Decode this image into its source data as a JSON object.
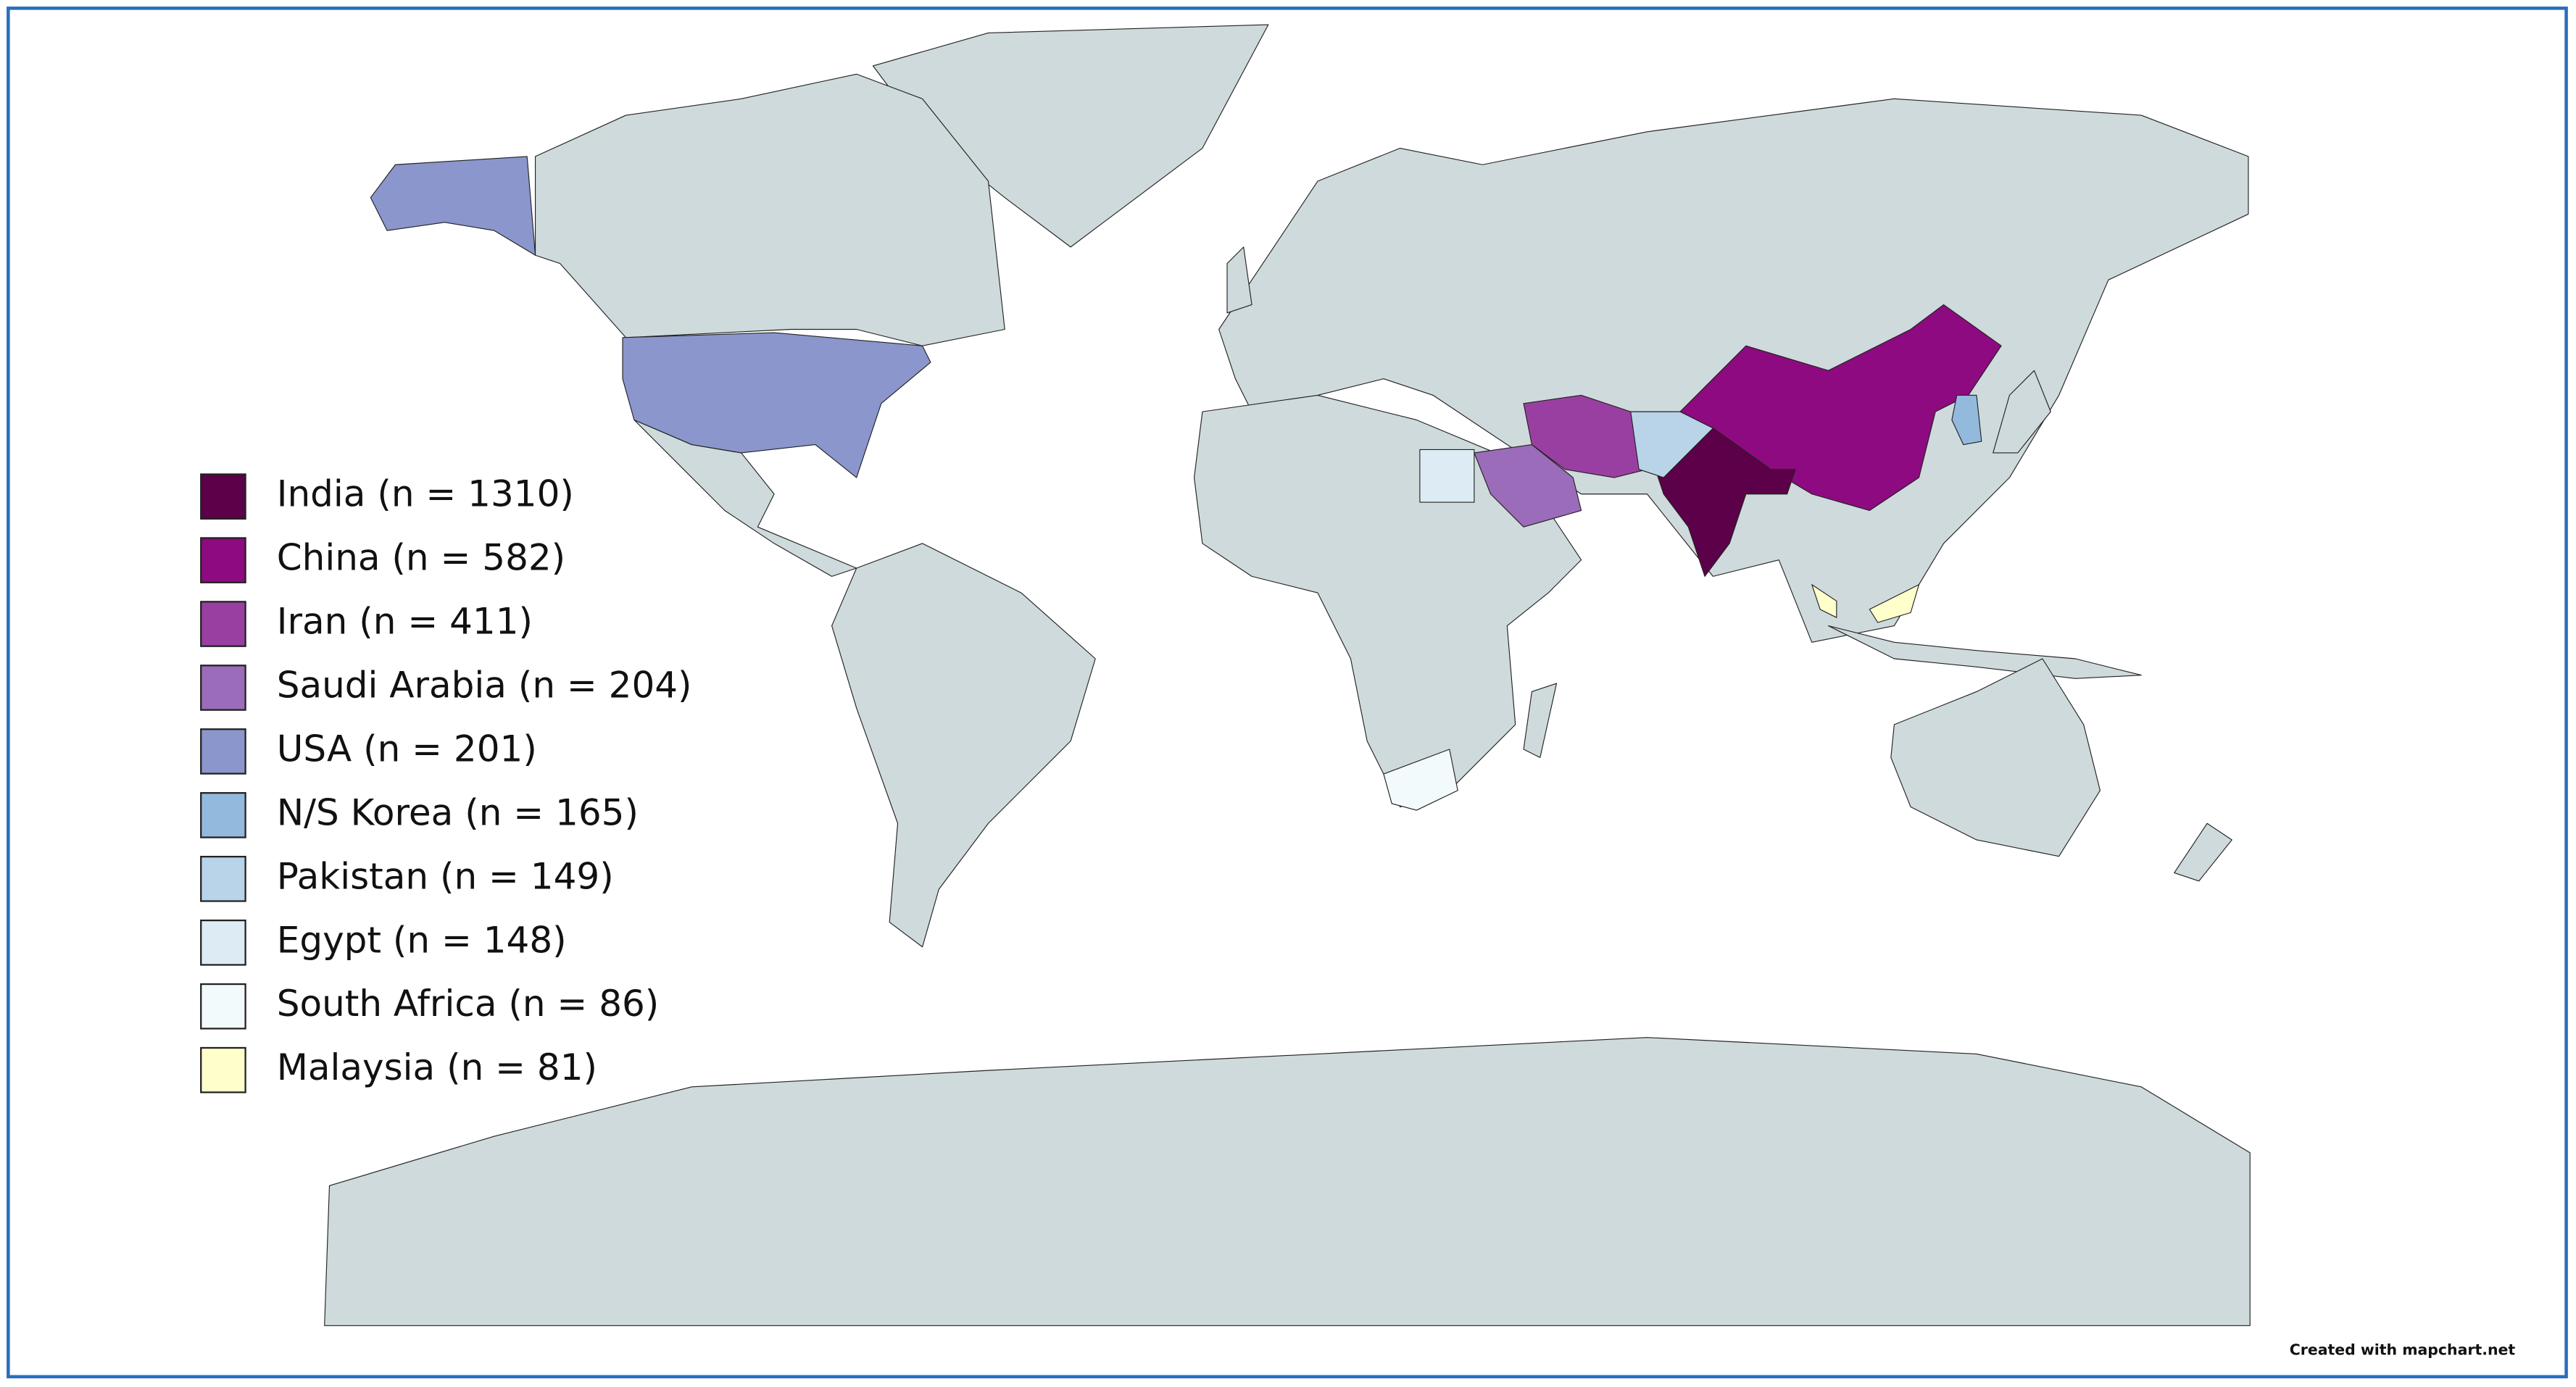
{
  "legend": {
    "items": [
      {
        "label": "India (n = 1310)",
        "color": "#5c0049"
      },
      {
        "label": "China (n = 582)",
        "color": "#8e0a80"
      },
      {
        "label": "Iran (n = 411)",
        "color": "#9a3fa2"
      },
      {
        "label": "Saudi Arabia (n = 204)",
        "color": "#9b6cb9"
      },
      {
        "label": "USA (n = 201)",
        "color": "#8a96cc"
      },
      {
        "label": "N/S Korea (n = 165)",
        "color": "#93b9dd"
      },
      {
        "label": "Pakistan (n = 149)",
        "color": "#b9d3e9"
      },
      {
        "label": "Egypt (n = 148)",
        "color": "#ddebf4"
      },
      {
        "label": "South Africa (n = 86)",
        "color": "#f3fafb"
      },
      {
        "label": "Malaysia (n = 81)",
        "color": "#ffffcc"
      }
    ]
  },
  "credit": "Created with mapchart.net"
}
